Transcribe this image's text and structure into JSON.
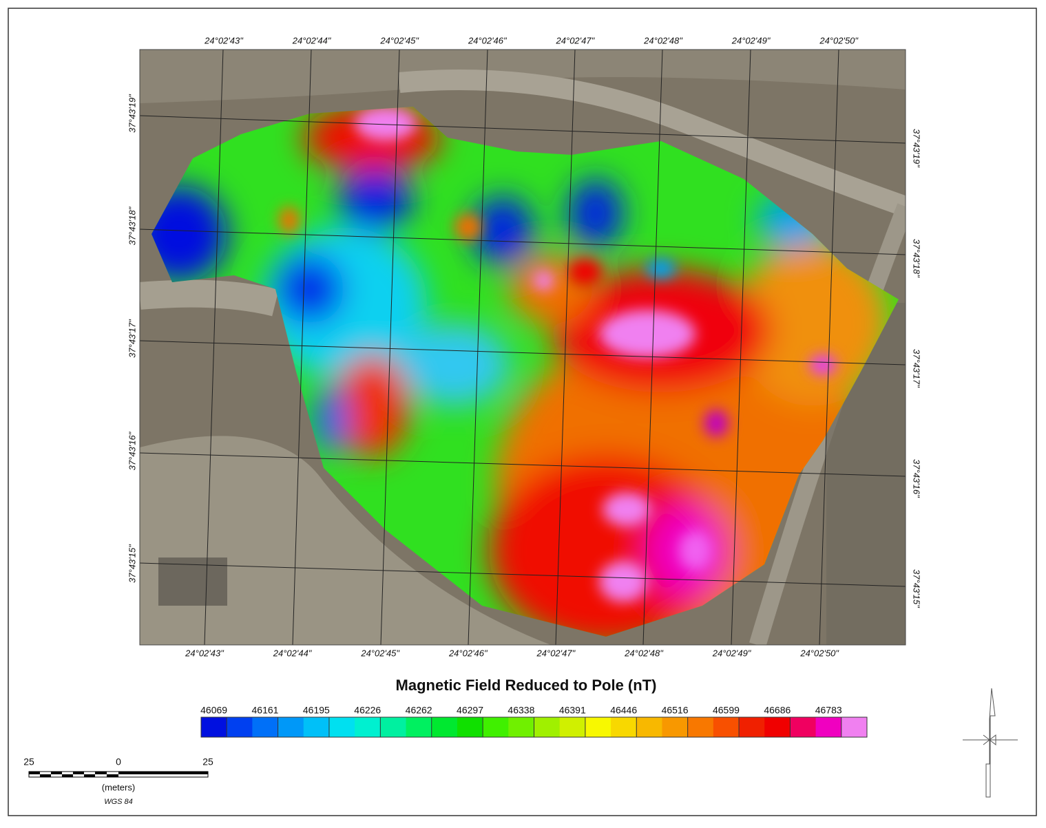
{
  "map": {
    "top_labels": [
      "24°02'43\"",
      "24°02'44\"",
      "24°02'45\"",
      "24°02'46\"",
      "24°02'47\"",
      "24°02'48\"",
      "24°02'49\"",
      "24°02'50\""
    ],
    "bottom_labels": [
      "24°02'43\"",
      "24°02'44\"",
      "24°02'45\"",
      "24°02'46\"",
      "24°02'47\"",
      "24°02'48\"",
      "24°02'49\"",
      "24°02'50\""
    ],
    "left_labels": [
      "37°43'19\"",
      "37°43'18\"",
      "37°43'17\"",
      "37°43'16\"",
      "37°43'15\""
    ],
    "right_labels": [
      "37°43'19\"",
      "37°43'18\"",
      "37°43'17\"",
      "37°43'16\"",
      "37°43'15\""
    ],
    "title": "Magnetic Field Reduced to Pole  (nT)",
    "legend": {
      "values": [
        46069,
        46161,
        46195,
        46226,
        46262,
        46297,
        46338,
        46391,
        46446,
        46516,
        46599,
        46686,
        46783
      ],
      "colors": [
        "#0010e0",
        "#0040f0",
        "#0070f8",
        "#0098f8",
        "#00c0f8",
        "#00e0f0",
        "#00f0d0",
        "#00f0a0",
        "#00f060",
        "#00e830",
        "#10e000",
        "#40f000",
        "#70f000",
        "#a0f000",
        "#d0f000",
        "#f8f800",
        "#f8d800",
        "#f8b800",
        "#f89800",
        "#f87800",
        "#f85000",
        "#f02000",
        "#f00000",
        "#f00060",
        "#f000c0",
        "#f080f0"
      ]
    },
    "scale_bar": {
      "labels": [
        "25",
        "0",
        "25"
      ],
      "unit": "(meters)",
      "datum": "WGS 84"
    }
  }
}
